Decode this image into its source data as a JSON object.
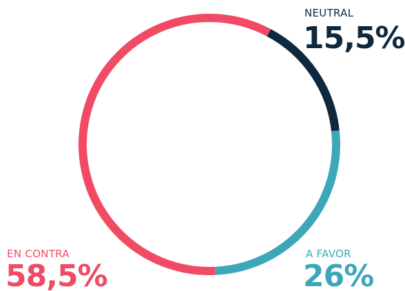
{
  "chart_data": {
    "type": "donut",
    "categories": [
      "NEUTRAL",
      "A FAVOR",
      "EN CONTRA"
    ],
    "values": [
      15.5,
      26,
      58.5
    ],
    "value_labels": [
      "15,5%",
      "26%",
      "58,5%"
    ],
    "colors": [
      "#0e283d",
      "#3ba7b8",
      "#f04a64"
    ]
  }
}
